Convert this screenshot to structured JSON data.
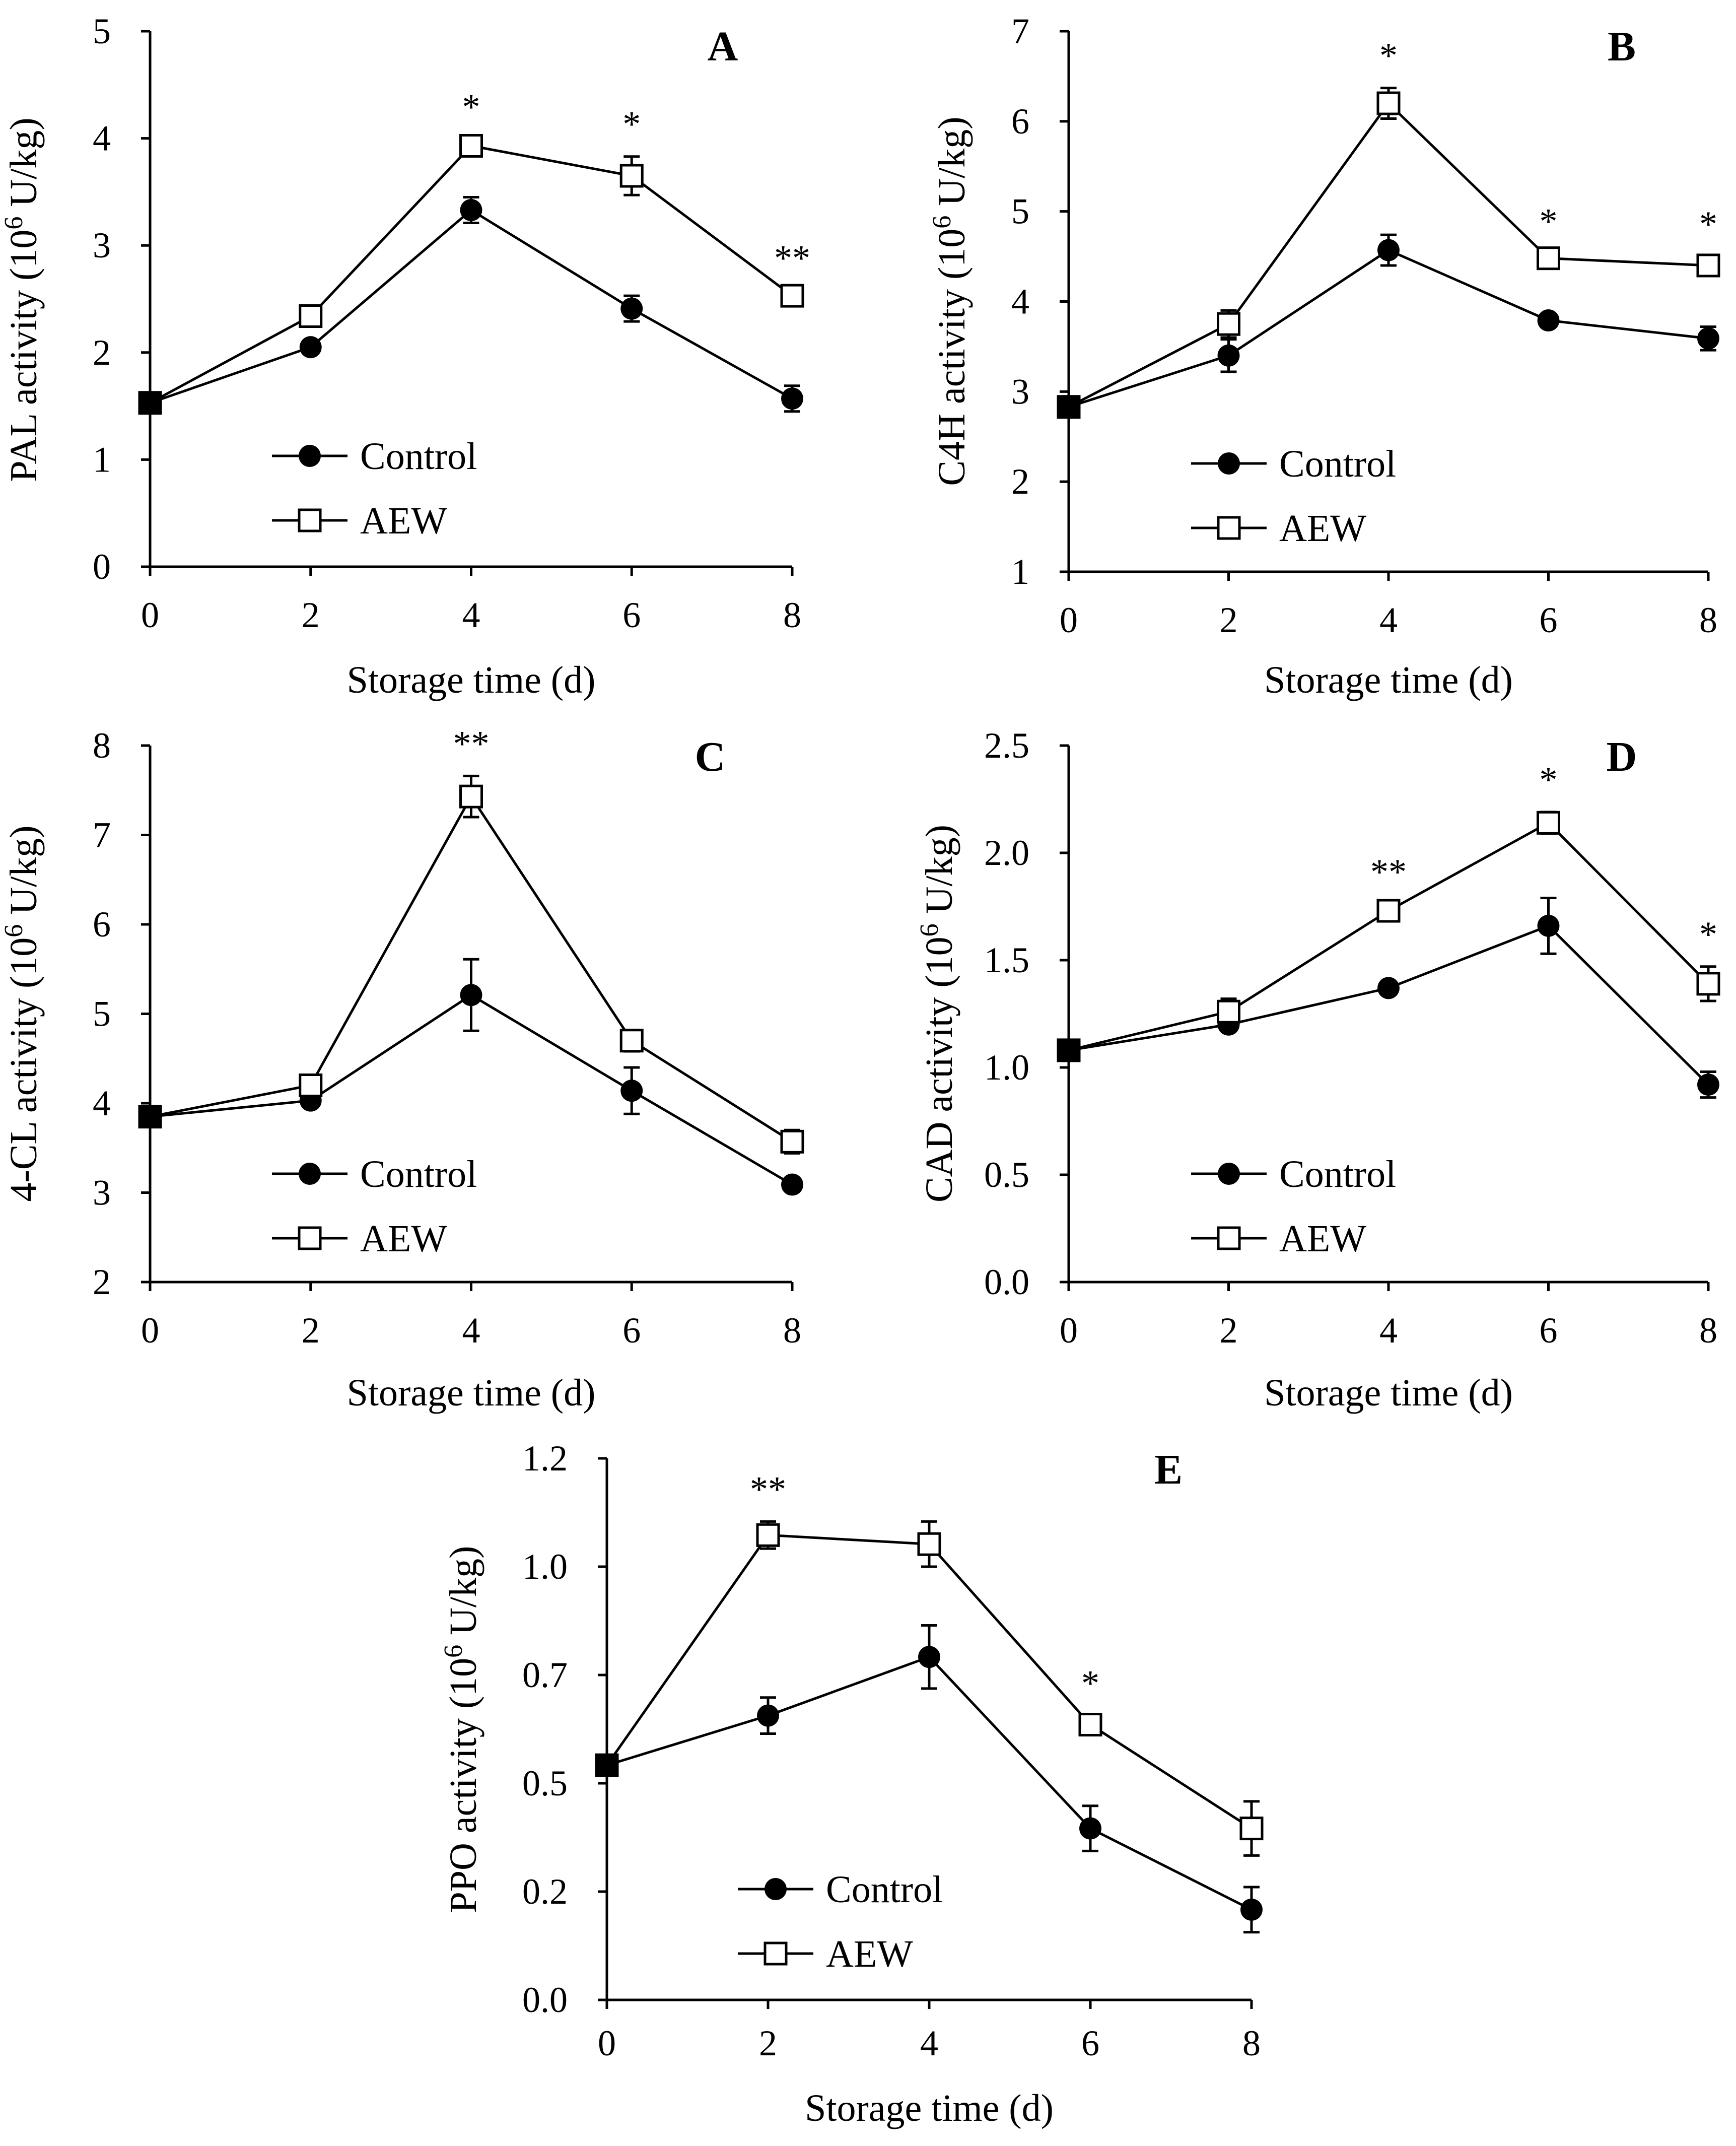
{
  "figure": {
    "legend": {
      "control_label": "Control",
      "aew_label": "AEW"
    }
  },
  "chart_data": [
    {
      "type": "line",
      "panel": "A",
      "xlabel": "Storage time (d)",
      "ylabel_prefix": "PAL activity (10",
      "ylabel_sup": "6",
      "ylabel_suffix": " U/kg)",
      "x": [
        0,
        2,
        4,
        6,
        8
      ],
      "xticks": [
        "0",
        "2",
        "4",
        "6",
        "8"
      ],
      "ylim": [
        0,
        5
      ],
      "yticks": [
        "0",
        "1",
        "2",
        "3",
        "4",
        "5"
      ],
      "series": [
        {
          "name": "Control",
          "values": [
            1.53,
            2.05,
            3.33,
            2.41,
            1.57
          ],
          "errors": [
            0.05,
            0.06,
            0.12,
            0.12,
            0.12
          ]
        },
        {
          "name": "AEW",
          "values": [
            1.53,
            2.34,
            3.93,
            3.65,
            2.53
          ],
          "errors": [
            0.05,
            0.06,
            0.06,
            0.18,
            0.05
          ]
        }
      ],
      "significance": [
        "",
        "",
        "*",
        "*",
        "**"
      ]
    },
    {
      "type": "line",
      "panel": "B",
      "xlabel": "Storage time (d)",
      "ylabel_prefix": "C4H activity (10",
      "ylabel_sup": "6",
      "ylabel_suffix": " U/kg)",
      "x": [
        0,
        2,
        4,
        6,
        8
      ],
      "xticks": [
        "0",
        "2",
        "4",
        "6",
        "8"
      ],
      "ylim": [
        1,
        7
      ],
      "yticks": [
        "1",
        "2",
        "3",
        "4",
        "5",
        "6",
        "7"
      ],
      "series": [
        {
          "name": "Control",
          "values": [
            2.83,
            3.4,
            4.57,
            3.79,
            3.59
          ],
          "errors": [
            0.08,
            0.18,
            0.17,
            0.07,
            0.13
          ]
        },
        {
          "name": "AEW",
          "values": [
            2.83,
            3.75,
            6.2,
            4.48,
            4.4
          ],
          "errors": [
            0.08,
            0.15,
            0.17,
            0.05,
            0.1
          ]
        }
      ],
      "significance": [
        "",
        "",
        "*",
        "*",
        "*"
      ]
    },
    {
      "type": "line",
      "panel": "C",
      "xlabel": "Storage time (d)",
      "ylabel_prefix": "4-CL activity (10",
      "ylabel_sup": "6",
      "ylabel_suffix": " U/kg)",
      "x": [
        0,
        2,
        4,
        6,
        8
      ],
      "xticks": [
        "0",
        "2",
        "4",
        "6",
        "8"
      ],
      "ylim": [
        2,
        8
      ],
      "yticks": [
        "2",
        "3",
        "4",
        "5",
        "6",
        "7",
        "8"
      ],
      "series": [
        {
          "name": "Control",
          "values": [
            3.85,
            4.03,
            5.21,
            4.14,
            3.09
          ],
          "errors": [
            0.05,
            0.05,
            0.4,
            0.26,
            0.07
          ]
        },
        {
          "name": "AEW",
          "values": [
            3.85,
            4.2,
            7.43,
            4.7,
            3.57
          ],
          "errors": [
            0.05,
            0.06,
            0.23,
            0.12,
            0.13
          ]
        }
      ],
      "significance": [
        "",
        "",
        "**",
        "",
        ""
      ]
    },
    {
      "type": "line",
      "panel": "D",
      "xlabel": "Storage time (d)",
      "ylabel_prefix": "CAD activity (10",
      "ylabel_sup": "6",
      "ylabel_suffix": " U/kg)",
      "x": [
        0,
        2,
        4,
        6,
        8
      ],
      "xticks": [
        "0",
        "2",
        "4",
        "6",
        "8"
      ],
      "ylim": [
        0,
        2.5
      ],
      "yticks": [
        "0.0",
        "0.5",
        "1.0",
        "1.5",
        "2.0",
        "2.5"
      ],
      "series": [
        {
          "name": "Control",
          "values": [
            1.08,
            1.2,
            1.37,
            1.66,
            0.92
          ],
          "errors": [
            0.03,
            0.03,
            0.02,
            0.13,
            0.06
          ]
        },
        {
          "name": "AEW",
          "values": [
            1.08,
            1.26,
            1.73,
            2.14,
            1.39
          ],
          "errors": [
            0.03,
            0.06,
            0.03,
            0.05,
            0.08
          ]
        }
      ],
      "significance": [
        "",
        "",
        "**",
        "*",
        "*"
      ]
    },
    {
      "type": "line",
      "panel": "E",
      "xlabel": "Storage time (d)",
      "ylabel_prefix": "PPO activity (10",
      "ylabel_sup": "6",
      "ylabel_suffix": " U/kg)",
      "x": [
        0,
        2,
        4,
        6,
        8
      ],
      "xticks": [
        "0",
        "2",
        "4",
        "6",
        "8"
      ],
      "ylim": [
        0,
        1.2
      ],
      "yticks": [
        "0.0",
        "0.2",
        "0.5",
        "0.7",
        "1.0",
        "1.2"
      ],
      "series": [
        {
          "name": "Control",
          "values": [
            0.52,
            0.63,
            0.76,
            0.38,
            0.2
          ],
          "errors": [
            0.02,
            0.04,
            0.07,
            0.05,
            0.05
          ]
        },
        {
          "name": "AEW",
          "values": [
            0.52,
            1.03,
            1.01,
            0.61,
            0.38
          ],
          "errors": [
            0.02,
            0.03,
            0.05,
            0.02,
            0.06
          ]
        }
      ],
      "significance": [
        "",
        "**",
        "",
        "*",
        ""
      ]
    }
  ]
}
